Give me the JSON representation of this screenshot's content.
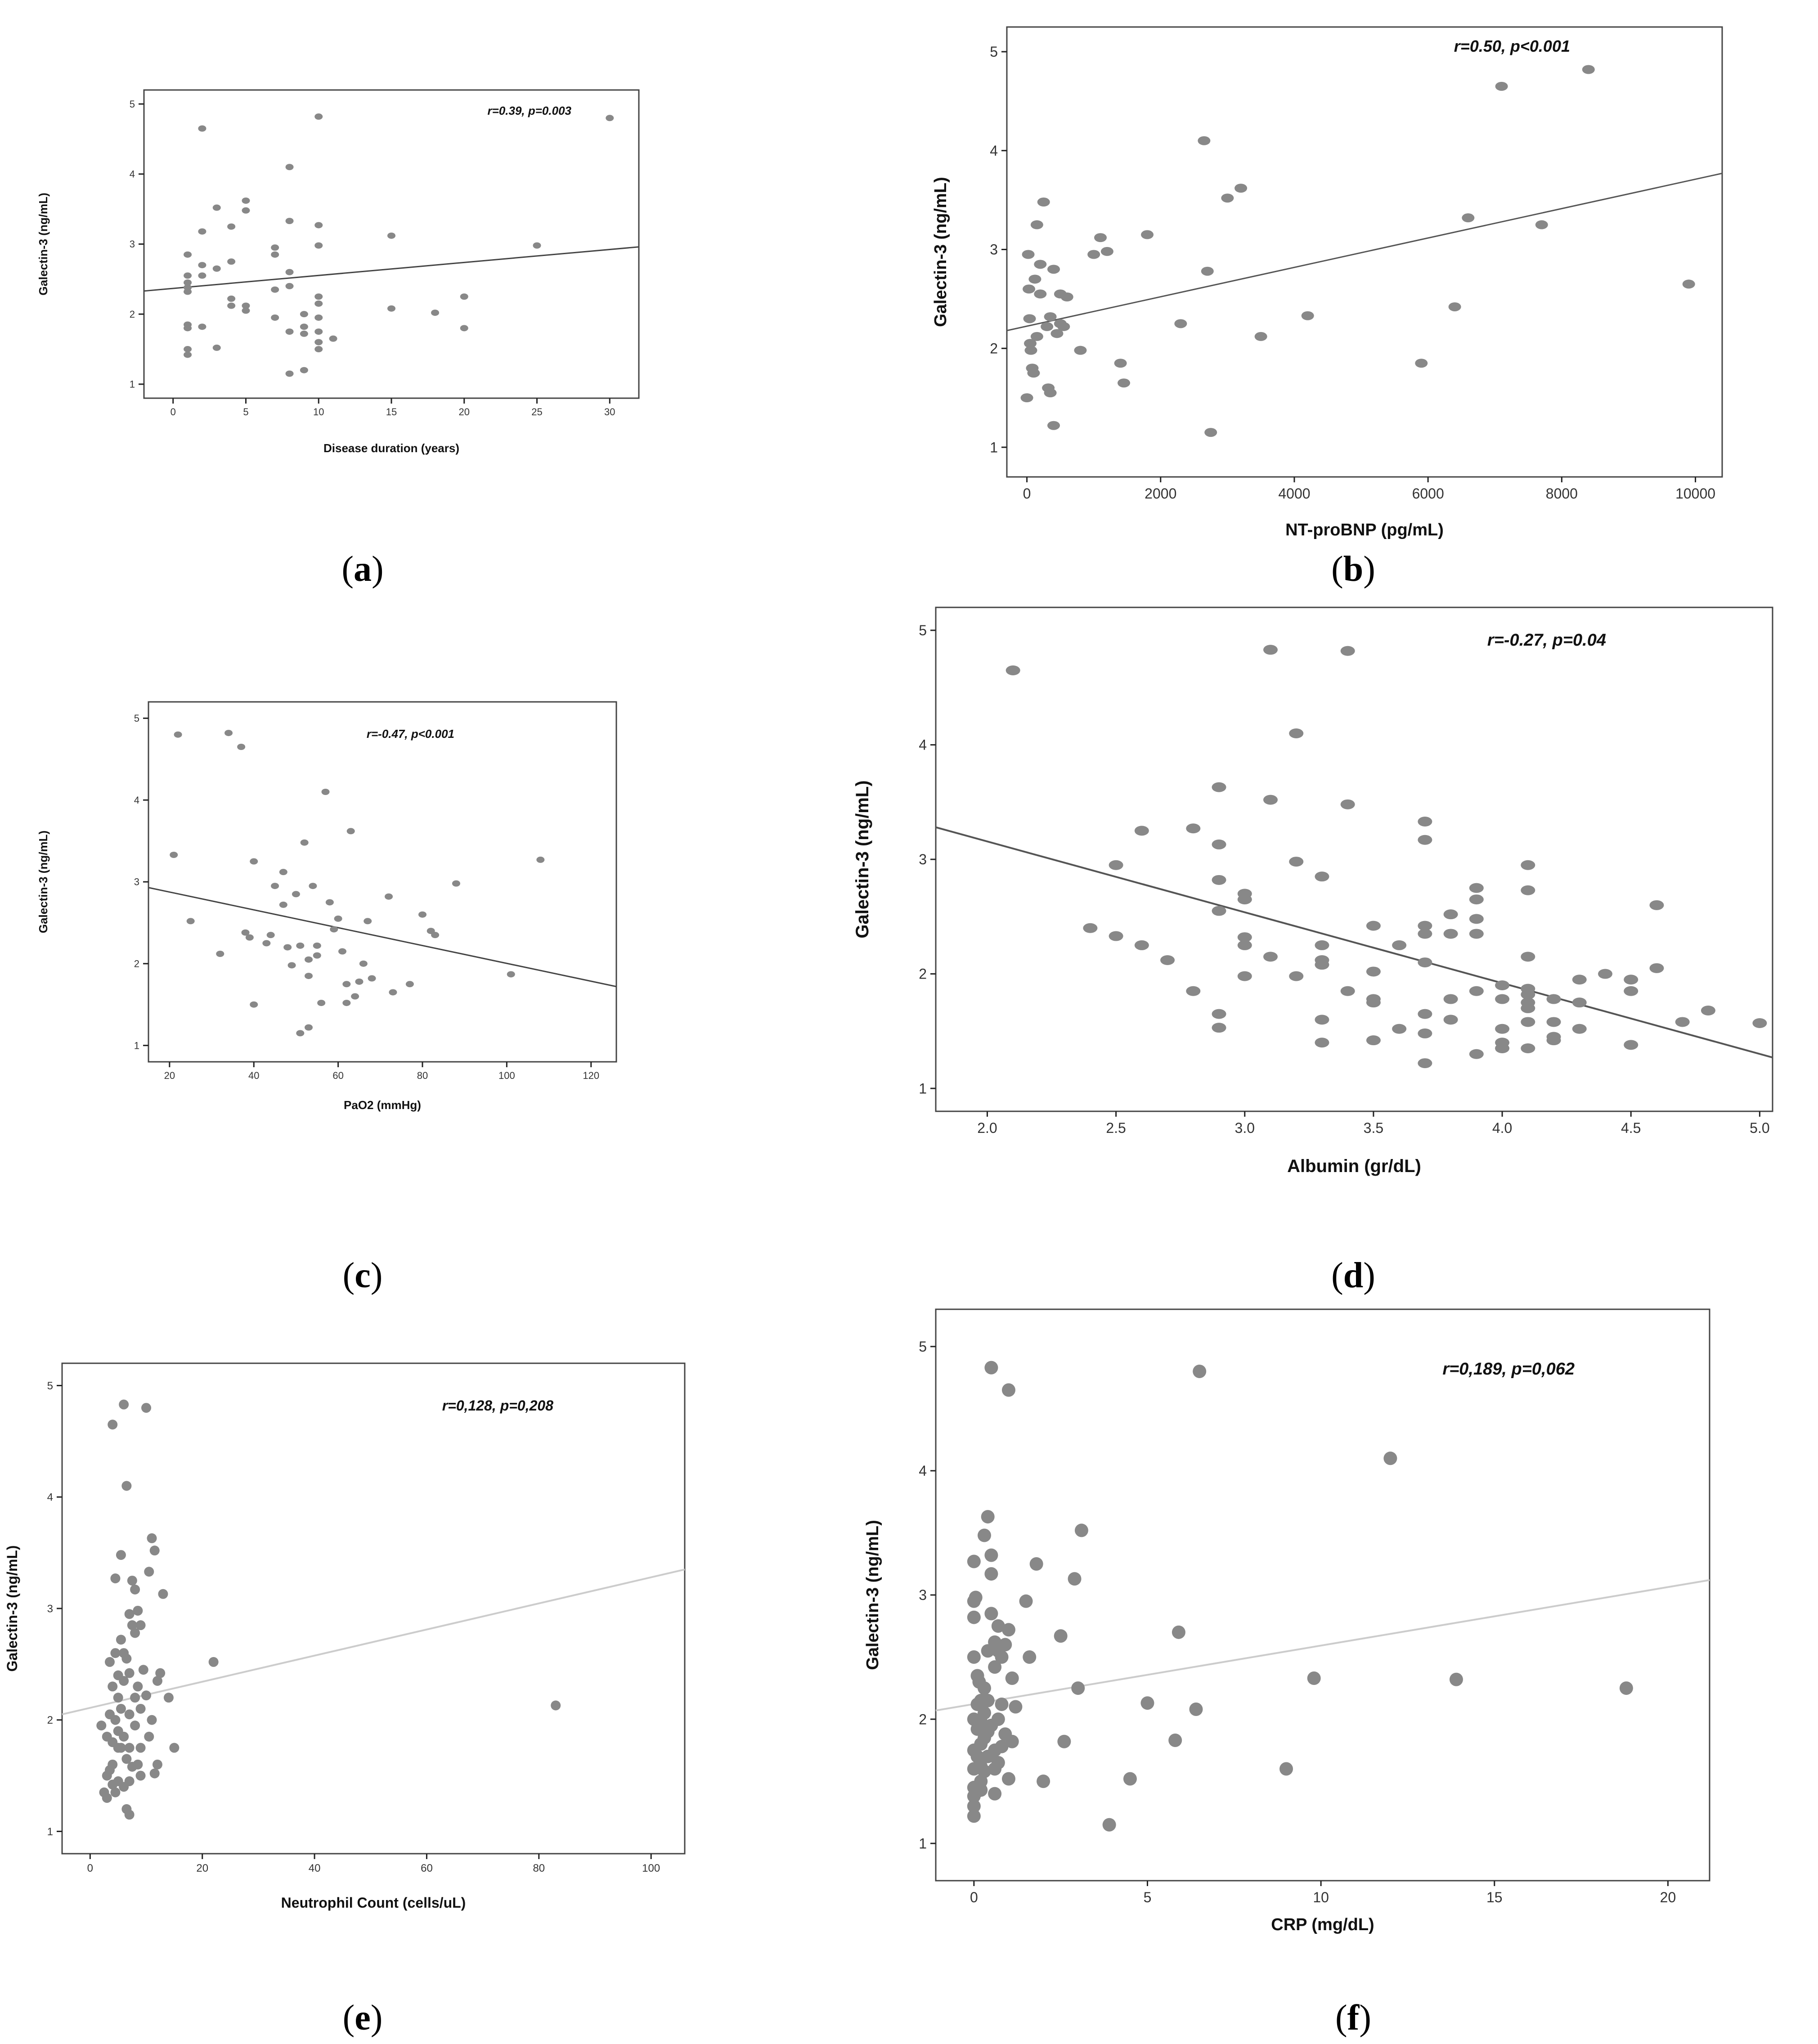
{
  "chart_data": [
    {
      "id": "a",
      "type": "scatter",
      "caption_letter": "a",
      "xlabel": "Disease duration (years)",
      "ylabel": "Galectin-3 (ng/mL)",
      "annotation": "r=0.39, p=0.003",
      "xlim": [
        -2,
        32
      ],
      "ylim": [
        0.8,
        5.2
      ],
      "xticks": [
        0,
        5,
        10,
        15,
        20,
        25,
        30
      ],
      "yticks": [
        1,
        2,
        3,
        4,
        5
      ],
      "marker_color": "#888888",
      "line_color": "#444444",
      "fit_line": [
        [
          -2,
          2.33
        ],
        [
          32,
          2.96
        ]
      ],
      "x": [
        1,
        1,
        1,
        1,
        1,
        1,
        1,
        1,
        1,
        2,
        2,
        2,
        2,
        2,
        3,
        3,
        3,
        4,
        4,
        4,
        4,
        5,
        5,
        5,
        5,
        7,
        7,
        7,
        7,
        8,
        8,
        8,
        8,
        8,
        8,
        9,
        9,
        9,
        9,
        10,
        10,
        10,
        10,
        10,
        10,
        10,
        10,
        10,
        11,
        15,
        15,
        18,
        20,
        20,
        25,
        30
      ],
      "y": [
        2.85,
        2.55,
        2.45,
        2.38,
        2.32,
        1.85,
        1.8,
        1.5,
        1.42,
        4.65,
        3.18,
        2.7,
        2.55,
        1.82,
        3.52,
        2.65,
        1.52,
        3.25,
        2.75,
        2.22,
        2.12,
        3.62,
        3.48,
        2.12,
        2.05,
        2.95,
        2.85,
        2.35,
        1.95,
        4.1,
        3.33,
        2.6,
        2.4,
        1.75,
        1.15,
        2.0,
        1.72,
        1.2,
        1.82,
        4.82,
        3.27,
        2.98,
        2.25,
        2.15,
        1.95,
        1.75,
        1.6,
        1.5,
        1.65,
        3.12,
        2.08,
        2.02,
        2.25,
        1.8,
        2.98,
        4.8
      ]
    },
    {
      "id": "b",
      "type": "scatter",
      "caption_letter": "b",
      "xlabel": "NT-proBNP (pg/mL)",
      "ylabel": "Galectin-3 (ng/mL)",
      "annotation": "r=0.50, p<0.001",
      "xlim": [
        -300,
        10400
      ],
      "ylim": [
        0.7,
        5.25
      ],
      "xticks": [
        0,
        2000,
        4000,
        6000,
        8000,
        10000
      ],
      "yticks": [
        1,
        2,
        3,
        4,
        5
      ],
      "marker_color": "#888888",
      "line_color": "#555555",
      "fit_line": [
        [
          -300,
          2.18
        ],
        [
          10400,
          3.77
        ]
      ],
      "x": [
        0,
        20,
        30,
        40,
        50,
        60,
        80,
        100,
        120,
        150,
        150,
        200,
        200,
        250,
        300,
        320,
        350,
        350,
        400,
        400,
        450,
        500,
        500,
        550,
        600,
        800,
        1000,
        1100,
        1200,
        1400,
        1450,
        1800,
        2300,
        2650,
        2700,
        2750,
        3000,
        3200,
        3500,
        4200,
        5900,
        6400,
        6600,
        7100,
        7700,
        8400,
        9900
      ],
      "y": [
        1.5,
        2.95,
        2.6,
        2.3,
        2.05,
        1.98,
        1.8,
        1.75,
        2.7,
        3.25,
        2.12,
        2.85,
        2.55,
        3.48,
        2.22,
        1.6,
        1.55,
        2.32,
        2.8,
        1.22,
        2.15,
        2.55,
        2.25,
        2.22,
        2.52,
        1.98,
        2.95,
        3.12,
        2.98,
        1.85,
        1.65,
        3.15,
        2.25,
        4.1,
        2.78,
        1.15,
        3.52,
        3.62,
        2.12,
        2.33,
        1.85,
        2.42,
        3.32,
        4.65,
        3.25,
        4.82,
        2.65
      ]
    },
    {
      "id": "c",
      "type": "scatter",
      "caption_letter": "c",
      "xlabel": "PaO2 (mmHg)",
      "ylabel": "Galectin-3 (ng/mL)",
      "annotation": "r=-0.47, p<0.001",
      "xlim": [
        15,
        126
      ],
      "ylim": [
        0.8,
        5.2
      ],
      "xticks": [
        20,
        40,
        60,
        80,
        100,
        120
      ],
      "yticks": [
        1,
        2,
        3,
        4,
        5
      ],
      "marker_color": "#888888",
      "line_color": "#444444",
      "fit_line": [
        [
          15,
          2.93
        ],
        [
          126,
          1.72
        ]
      ],
      "x": [
        21,
        22,
        25,
        32,
        34,
        37,
        38,
        39,
        40,
        40,
        43,
        44,
        45,
        47,
        47,
        48,
        49,
        50,
        51,
        51,
        52,
        53,
        53,
        53,
        54,
        55,
        55,
        56,
        57,
        58,
        59,
        60,
        61,
        62,
        62,
        63,
        64,
        65,
        66,
        67,
        68,
        72,
        73,
        77,
        80,
        82,
        83,
        88,
        101,
        108
      ],
      "y": [
        3.33,
        4.8,
        2.52,
        2.12,
        4.82,
        4.65,
        2.38,
        2.32,
        3.25,
        1.5,
        2.25,
        2.35,
        2.95,
        2.72,
        3.12,
        2.2,
        1.98,
        2.85,
        2.22,
        1.15,
        3.48,
        2.05,
        1.85,
        1.22,
        2.95,
        2.22,
        2.1,
        1.52,
        4.1,
        2.75,
        2.42,
        2.55,
        2.15,
        1.75,
        1.52,
        3.62,
        1.6,
        1.78,
        2.0,
        2.52,
        1.82,
        2.82,
        1.65,
        1.75,
        2.6,
        2.4,
        2.35,
        2.98,
        1.87,
        3.27
      ]
    },
    {
      "id": "d",
      "type": "scatter",
      "caption_letter": "d",
      "xlabel": "Albumin (gr/dL)",
      "ylabel": "Galectin-3 (ng/mL)",
      "annotation": "r=-0.27, p=0.04",
      "xlim": [
        1.8,
        5.05
      ],
      "ylim": [
        0.8,
        5.2
      ],
      "xticks": [
        2.0,
        2.5,
        3.0,
        3.5,
        4.0,
        4.5,
        5.0
      ],
      "ytick_format": "decimal",
      "yticks": [
        1,
        2,
        3,
        4,
        5
      ],
      "marker_color": "#888888",
      "line_color": "#555555",
      "fit_line": [
        [
          1.8,
          3.28
        ],
        [
          5.05,
          1.27
        ]
      ],
      "x": [
        2.1,
        2.4,
        2.5,
        2.5,
        2.6,
        2.6,
        2.7,
        2.8,
        2.8,
        2.9,
        2.9,
        2.9,
        2.9,
        2.9,
        2.9,
        3.0,
        3.0,
        3.0,
        3.0,
        3.0,
        3.1,
        3.1,
        3.1,
        3.2,
        3.2,
        3.2,
        3.3,
        3.3,
        3.3,
        3.3,
        3.3,
        3.3,
        3.4,
        3.4,
        3.4,
        3.5,
        3.5,
        3.5,
        3.5,
        3.5,
        3.6,
        3.6,
        3.7,
        3.7,
        3.7,
        3.7,
        3.7,
        3.7,
        3.7,
        3.7,
        3.8,
        3.8,
        3.8,
        3.8,
        3.9,
        3.9,
        3.9,
        3.9,
        3.9,
        3.9,
        4.0,
        4.0,
        4.0,
        4.0,
        4.0,
        4.1,
        4.1,
        4.1,
        4.1,
        4.1,
        4.1,
        4.1,
        4.1,
        4.1,
        4.2,
        4.2,
        4.2,
        4.2,
        4.3,
        4.3,
        4.3,
        4.4,
        4.5,
        4.5,
        4.5,
        4.6,
        4.6,
        4.7,
        4.8,
        5.0
      ],
      "y": [
        4.65,
        2.4,
        2.95,
        2.33,
        3.25,
        2.25,
        2.12,
        3.27,
        1.85,
        3.63,
        3.13,
        2.82,
        2.55,
        1.65,
        1.53,
        2.7,
        2.65,
        2.32,
        2.25,
        1.98,
        4.83,
        3.52,
        2.15,
        4.1,
        2.98,
        1.98,
        2.85,
        2.25,
        2.12,
        2.08,
        1.6,
        1.4,
        4.82,
        3.48,
        1.85,
        2.42,
        2.02,
        1.78,
        1.75,
        1.42,
        2.25,
        1.52,
        3.33,
        3.17,
        2.42,
        2.35,
        2.1,
        1.65,
        1.48,
        1.22,
        2.52,
        2.35,
        1.78,
        1.6,
        2.75,
        2.65,
        2.48,
        2.35,
        1.85,
        1.3,
        1.9,
        1.78,
        1.52,
        1.4,
        1.35,
        2.95,
        2.73,
        2.15,
        1.87,
        1.82,
        1.75,
        1.7,
        1.58,
        1.35,
        1.78,
        1.58,
        1.45,
        1.42,
        1.95,
        1.75,
        1.52,
        2.0,
        1.95,
        1.85,
        1.38,
        2.6,
        2.05,
        1.58,
        1.68,
        1.57
      ]
    },
    {
      "id": "e",
      "type": "scatter",
      "caption_letter": "e",
      "xlabel": "Neutrophil Count (cells/uL)",
      "ylabel": "Galectin-3 (ng/mL)",
      "annotation": "r=0,128, p=0,208",
      "xlim": [
        -5,
        106
      ],
      "ylim": [
        0.8,
        5.2
      ],
      "xticks": [
        0,
        20,
        40,
        60,
        80,
        100
      ],
      "yticks": [
        1,
        2,
        3,
        4,
        5
      ],
      "marker_color": "#888888",
      "line_color": "#cccccc",
      "fit_line": [
        [
          -5,
          2.05
        ],
        [
          106,
          3.35
        ]
      ],
      "x": [
        2,
        2.5,
        3,
        3,
        3,
        3.5,
        3.5,
        3.5,
        4,
        4,
        4,
        4,
        4,
        4.5,
        4.5,
        4.5,
        4.5,
        5,
        5,
        5,
        5,
        5,
        5.5,
        5.5,
        5.5,
        5.5,
        6,
        6,
        6,
        6,
        6,
        6.5,
        6.5,
        6.5,
        6.5,
        7,
        7,
        7,
        7,
        7,
        7,
        7.5,
        7.5,
        7.5,
        8,
        8,
        8,
        8,
        8.5,
        8.5,
        8.5,
        9,
        9,
        9,
        9,
        9.5,
        10,
        10,
        10.5,
        10.5,
        11,
        11,
        11.5,
        11.5,
        12,
        12,
        12.5,
        13,
        14,
        15,
        22,
        83
      ],
      "y": [
        1.95,
        1.35,
        1.85,
        1.5,
        1.3,
        2.52,
        2.05,
        1.55,
        4.65,
        2.3,
        1.8,
        1.6,
        1.42,
        3.27,
        2.6,
        2.0,
        1.35,
        2.4,
        2.2,
        1.9,
        1.75,
        1.45,
        3.48,
        2.72,
        2.1,
        1.75,
        4.83,
        2.6,
        2.35,
        1.85,
        1.4,
        4.1,
        2.55,
        1.65,
        1.2,
        2.95,
        2.42,
        2.05,
        1.75,
        1.45,
        1.15,
        3.25,
        2.85,
        1.58,
        3.17,
        2.78,
        2.2,
        1.95,
        2.98,
        2.3,
        1.6,
        2.85,
        2.1,
        1.75,
        1.5,
        2.45,
        4.8,
        2.22,
        3.33,
        1.85,
        3.63,
        2.0,
        3.52,
        1.52,
        2.35,
        1.6,
        2.42,
        3.13,
        2.2,
        1.75,
        2.52,
        2.13
      ]
    },
    {
      "id": "f",
      "type": "scatter",
      "caption_letter": "f",
      "xlabel": "CRP (mg/dL)",
      "ylabel": "Galectin-3 (ng/mL)",
      "annotation": "r=0,189, p=0,062",
      "xlim": [
        -1.1,
        21.2
      ],
      "ylim": [
        0.7,
        5.3
      ],
      "xticks": [
        0,
        5,
        10,
        15,
        20
      ],
      "yticks": [
        1,
        2,
        3,
        4,
        5
      ],
      "marker_color": "#888888",
      "line_color": "#cccccc",
      "fit_line": [
        [
          -1.1,
          2.07
        ],
        [
          21.2,
          3.12
        ]
      ],
      "x": [
        0.0,
        0.0,
        0.0,
        0.0,
        0.0,
        0.0,
        0.0,
        0.0,
        0.0,
        0.0,
        0.0,
        0.05,
        0.1,
        0.1,
        0.1,
        0.1,
        0.1,
        0.15,
        0.2,
        0.2,
        0.2,
        0.2,
        0.2,
        0.2,
        0.3,
        0.3,
        0.3,
        0.3,
        0.3,
        0.4,
        0.4,
        0.4,
        0.4,
        0.4,
        0.5,
        0.5,
        0.5,
        0.5,
        0.5,
        0.6,
        0.6,
        0.6,
        0.6,
        0.6,
        0.7,
        0.7,
        0.7,
        0.7,
        0.8,
        0.8,
        0.8,
        0.9,
        0.9,
        1.0,
        1.0,
        1.0,
        1.1,
        1.1,
        1.2,
        1.5,
        1.6,
        1.8,
        2.0,
        2.5,
        2.6,
        2.9,
        3.0,
        3.1,
        3.9,
        4.5,
        5.0,
        5.8,
        5.9,
        6.4,
        6.5,
        9.0,
        9.8,
        12.0,
        13.9,
        18.8
      ],
      "y": [
        3.27,
        2.95,
        2.82,
        2.5,
        2.0,
        1.75,
        1.6,
        1.45,
        1.38,
        1.3,
        1.22,
        2.98,
        2.35,
        2.12,
        1.92,
        1.7,
        1.42,
        2.3,
        2.15,
        1.98,
        1.8,
        1.62,
        1.5,
        1.43,
        3.48,
        2.25,
        2.05,
        1.85,
        1.58,
        3.63,
        2.55,
        2.15,
        1.9,
        1.7,
        4.83,
        3.32,
        3.17,
        2.85,
        1.95,
        2.62,
        2.42,
        1.75,
        1.6,
        1.4,
        2.75,
        2.55,
        2.0,
        1.65,
        2.5,
        2.12,
        1.78,
        2.6,
        1.88,
        4.65,
        2.72,
        1.52,
        2.33,
        1.82,
        2.1,
        2.95,
        2.5,
        3.25,
        1.5,
        2.67,
        1.82,
        3.13,
        2.25,
        3.52,
        1.15,
        1.52,
        2.13,
        1.83,
        2.7,
        2.08,
        4.8,
        1.6,
        2.33,
        4.1,
        2.32,
        2.25
      ]
    }
  ]
}
